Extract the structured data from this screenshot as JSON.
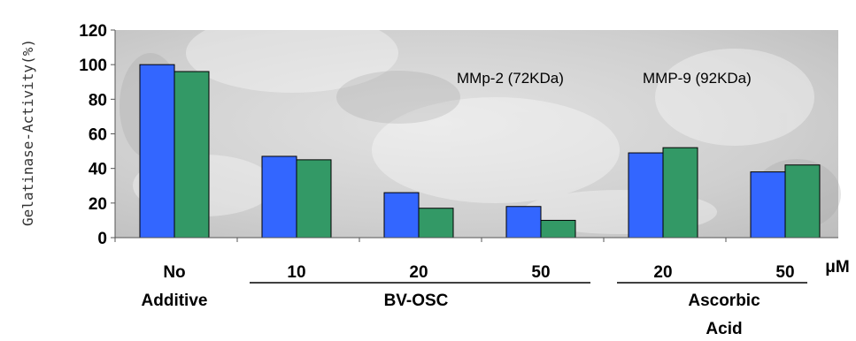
{
  "chart_data": {
    "type": "bar",
    "ylabel": "Gelatinase-Activity(%)",
    "ylim": [
      0,
      120
    ],
    "yticks": [
      0,
      20,
      40,
      60,
      80,
      100,
      120
    ],
    "categories": [
      "No Additive",
      "10",
      "20",
      "50",
      "20",
      "50"
    ],
    "series": [
      {
        "name": "MMp-2 (72KDa)",
        "color": "#3366ff",
        "values": [
          100,
          47,
          26,
          18,
          49,
          38
        ]
      },
      {
        "name": "MMP-9 (92KDa)",
        "color": "#339966",
        "values": [
          96,
          45,
          17,
          10,
          52,
          42
        ]
      }
    ],
    "groups": [
      {
        "label": "BV-OSC"
      },
      {
        "label": "Ascorbic Acid"
      }
    ],
    "unit_label": "μM",
    "grid": false,
    "legend": "top-right"
  }
}
